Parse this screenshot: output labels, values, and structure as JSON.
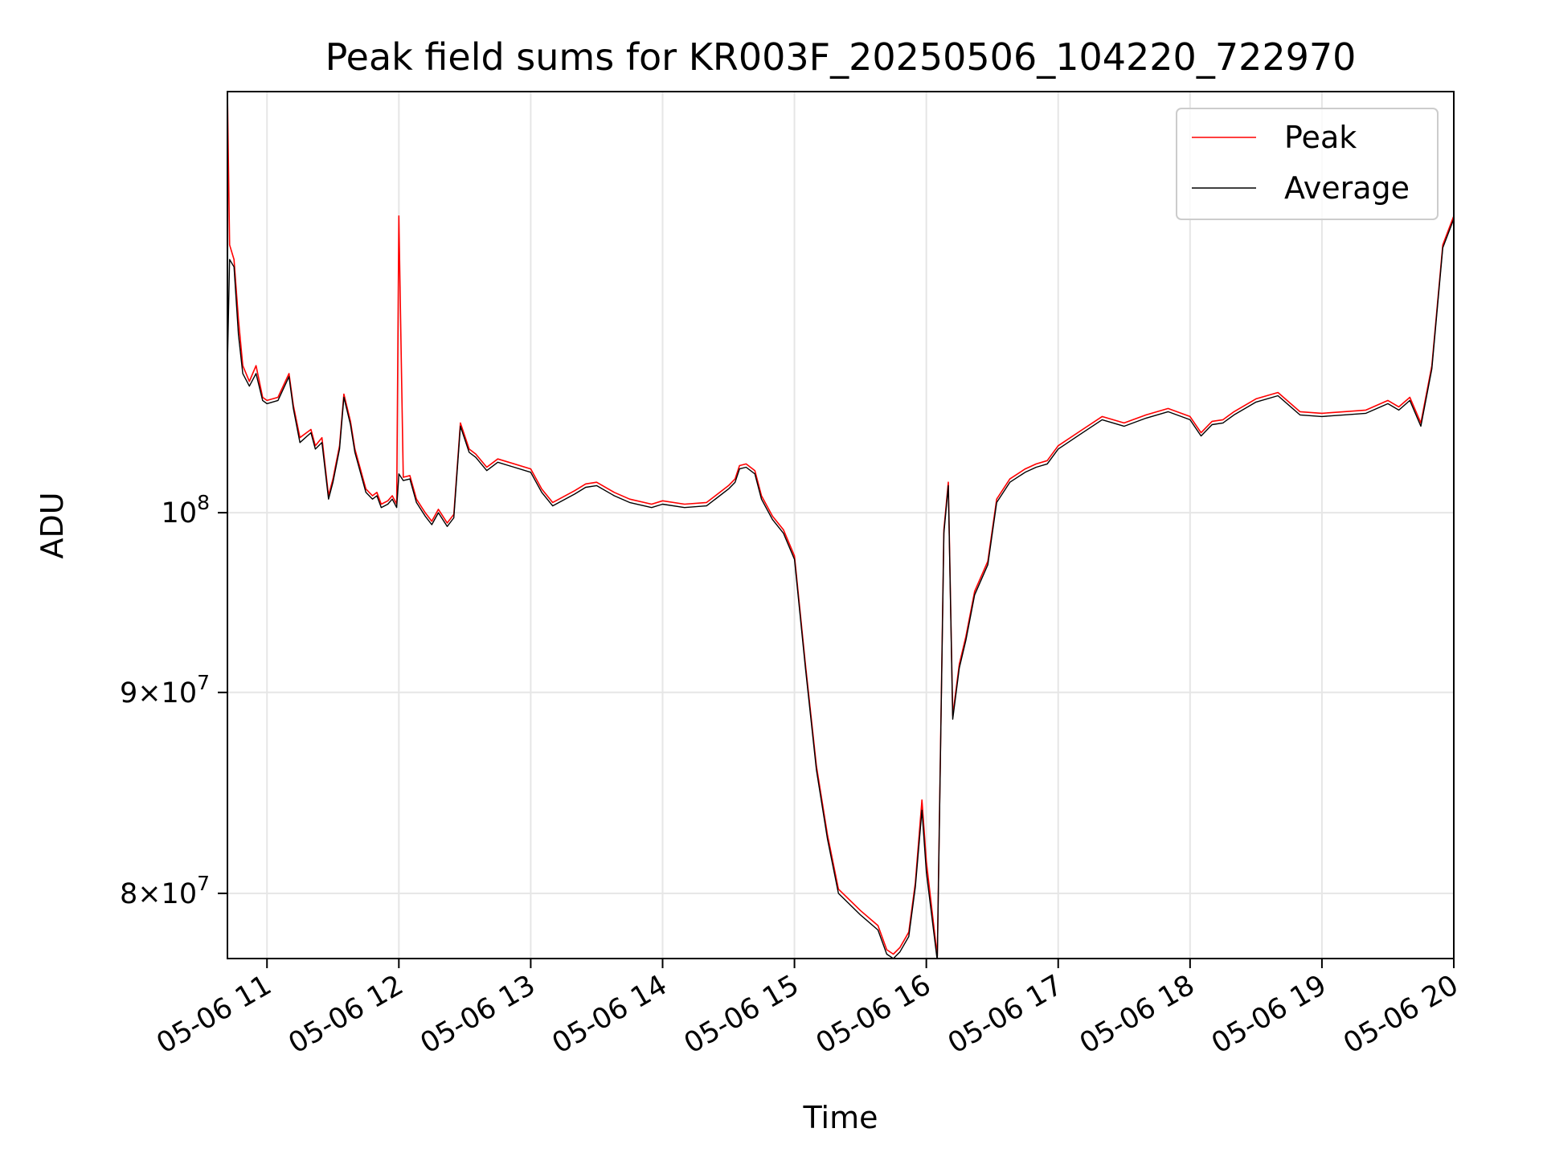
{
  "chart_data": {
    "type": "line",
    "title": "Peak field sums for KR003F_20250506_104220_722970",
    "xlabel": "Time",
    "ylabel": "ADU",
    "x_axis": {
      "kind": "datetime",
      "range": [
        "2025-05-06 10:42",
        "2025-05-06 20:00"
      ],
      "ticks": [
        "2025-05-06 11:00",
        "2025-05-06 12:00",
        "2025-05-06 13:00",
        "2025-05-06 14:00",
        "2025-05-06 15:00",
        "2025-05-06 16:00",
        "2025-05-06 17:00",
        "2025-05-06 18:00",
        "2025-05-06 19:00",
        "2025-05-06 20:00"
      ],
      "tick_labels": [
        "05-06 11",
        "05-06 12",
        "05-06 13",
        "05-06 14",
        "05-06 15",
        "05-06 16",
        "05-06 17",
        "05-06 18",
        "05-06 19",
        "05-06 20"
      ]
    },
    "y_axis": {
      "scale": "log",
      "range": [
        77000000,
        128000000
      ],
      "ticks": [
        80000000,
        90000000,
        100000000
      ],
      "tick_labels": [
        {
          "base": "8",
          "exp": "7"
        },
        {
          "base": "9",
          "exp": "7"
        },
        {
          "base": "",
          "exp": "8"
        }
      ]
    },
    "grid": true,
    "legend": {
      "position": "top-right"
    },
    "x": [
      "10:42",
      "10:43",
      "10:45",
      "10:47",
      "10:49",
      "10:52",
      "10:55",
      "10:58",
      "11:00",
      "11:05",
      "11:10",
      "11:12",
      "11:15",
      "11:20",
      "11:22",
      "11:25",
      "11:28",
      "11:30",
      "11:33",
      "11:35",
      "11:38",
      "11:40",
      "11:45",
      "11:48",
      "11:50",
      "11:52",
      "11:55",
      "11:57",
      "11:59",
      "12:00",
      "12:02",
      "12:05",
      "12:08",
      "12:12",
      "12:15",
      "12:18",
      "12:22",
      "12:25",
      "12:28",
      "12:32",
      "12:35",
      "12:40",
      "12:45",
      "12:50",
      "13:00",
      "13:05",
      "13:10",
      "13:20",
      "13:25",
      "13:30",
      "13:38",
      "13:45",
      "13:55",
      "14:00",
      "14:10",
      "14:20",
      "14:30",
      "14:33",
      "14:35",
      "14:38",
      "14:42",
      "14:45",
      "14:50",
      "14:55",
      "15:00",
      "15:05",
      "15:10",
      "15:15",
      "15:20",
      "15:30",
      "15:38",
      "15:42",
      "15:45",
      "15:48",
      "15:52",
      "15:55",
      "15:58",
      "16:00",
      "16:05",
      "16:08",
      "16:10",
      "16:12",
      "16:15",
      "16:18",
      "16:22",
      "16:28",
      "16:32",
      "16:38",
      "16:45",
      "16:50",
      "16:55",
      "17:00",
      "17:10",
      "17:20",
      "17:30",
      "17:40",
      "17:50",
      "18:00",
      "18:05",
      "18:10",
      "18:15",
      "18:20",
      "18:30",
      "18:40",
      "18:50",
      "19:00",
      "19:10",
      "19:20",
      "19:30",
      "19:35",
      "19:40",
      "19:45",
      "19:50",
      "19:55",
      "20:00"
    ],
    "series": [
      {
        "name": "Peak",
        "color": "#ff0000",
        "values": [
          128000000,
          117000000,
          116000000,
          112000000,
          109000000,
          108000000,
          109000000,
          107000000,
          106800000,
          107000000,
          108500000,
          106500000,
          104500000,
          105000000,
          104000000,
          104500000,
          101000000,
          102000000,
          104000000,
          107200000,
          105500000,
          103800000,
          101400000,
          101000000,
          101200000,
          100500000,
          100700000,
          101000000,
          100500000,
          119000000,
          102100000,
          102200000,
          100800000,
          100000000,
          99500000,
          100200000,
          99400000,
          99900000,
          105400000,
          103800000,
          103500000,
          102700000,
          103200000,
          103000000,
          102600000,
          101400000,
          100600000,
          101300000,
          101700000,
          101800000,
          101200000,
          100800000,
          100500000,
          100700000,
          100500000,
          100600000,
          101600000,
          102000000,
          102800000,
          102900000,
          102500000,
          101000000,
          99800000,
          99000000,
          97500000,
          91500000,
          86200000,
          82800000,
          80200000,
          79200000,
          78500000,
          77400000,
          77200000,
          77500000,
          78200000,
          80500000,
          84500000,
          81500000,
          77100000,
          99000000,
          101800000,
          88800000,
          91500000,
          93000000,
          95500000,
          97200000,
          100800000,
          102000000,
          102600000,
          102900000,
          103100000,
          104000000,
          104900000,
          105800000,
          105400000,
          105900000,
          106300000,
          105800000,
          104800000,
          105500000,
          105600000,
          106100000,
          106900000,
          107300000,
          106100000,
          106000000,
          106100000,
          106200000,
          106800000,
          106400000,
          107000000,
          105400000,
          109000000,
          117000000,
          119000000
        ]
      },
      {
        "name": "Average",
        "color": "#000000",
        "values": [
          109000000,
          116000000,
          115500000,
          111000000,
          108500000,
          107700000,
          108500000,
          106800000,
          106600000,
          106800000,
          108300000,
          106300000,
          104200000,
          104800000,
          103800000,
          104200000,
          100800000,
          101800000,
          103800000,
          107000000,
          105300000,
          103600000,
          101200000,
          100800000,
          101000000,
          100300000,
          100500000,
          100800000,
          100300000,
          102300000,
          101900000,
          102000000,
          100600000,
          99800000,
          99300000,
          100000000,
          99200000,
          99700000,
          105200000,
          103600000,
          103300000,
          102500000,
          103000000,
          102800000,
          102400000,
          101200000,
          100400000,
          101100000,
          101500000,
          101600000,
          101000000,
          100600000,
          100300000,
          100500000,
          100300000,
          100400000,
          101400000,
          101800000,
          102600000,
          102700000,
          102300000,
          100800000,
          99600000,
          98800000,
          97300000,
          91300000,
          86000000,
          82600000,
          80000000,
          79000000,
          78300000,
          77200000,
          77000000,
          77300000,
          78000000,
          80300000,
          84000000,
          81000000,
          76900000,
          98800000,
          101600000,
          88600000,
          91300000,
          92800000,
          95300000,
          97000000,
          100600000,
          101800000,
          102400000,
          102700000,
          102900000,
          103800000,
          104700000,
          105600000,
          105200000,
          105700000,
          106100000,
          105600000,
          104600000,
          105300000,
          105400000,
          105900000,
          106700000,
          107100000,
          105900000,
          105800000,
          105900000,
          106000000,
          106600000,
          106200000,
          106800000,
          105200000,
          108800000,
          116800000,
          118800000
        ]
      }
    ]
  }
}
